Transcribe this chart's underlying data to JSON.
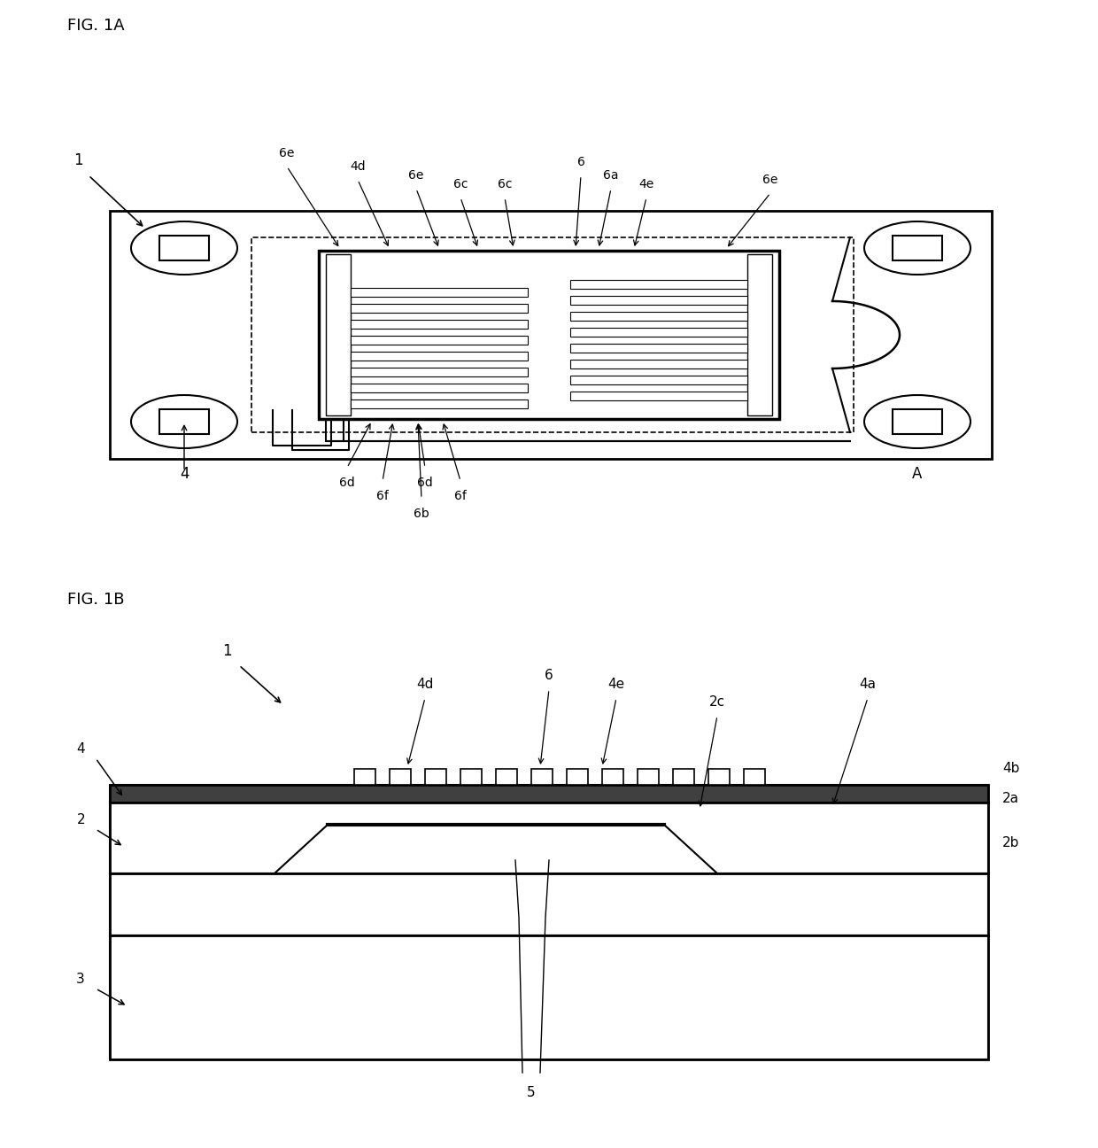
{
  "bg_color": "#ffffff",
  "line_color": "#000000",
  "fig_label_1a": "FIG. 1A",
  "fig_label_1b": "FIG. 1B",
  "label_1": "1",
  "label_2": "2",
  "label_3": "3",
  "label_4": "4",
  "label_5": "5",
  "label_6": "6",
  "label_A": "A",
  "label_2a": "2a",
  "label_2b": "2b",
  "label_2c": "2c",
  "label_4a": "4a",
  "label_4b": "4b",
  "label_4d": "4d",
  "label_4e": "4e",
  "label_6a": "6a",
  "label_6b": "6b",
  "label_6c": "6c",
  "label_6d": "6d",
  "label_6e": "6e",
  "label_6f": "6f"
}
